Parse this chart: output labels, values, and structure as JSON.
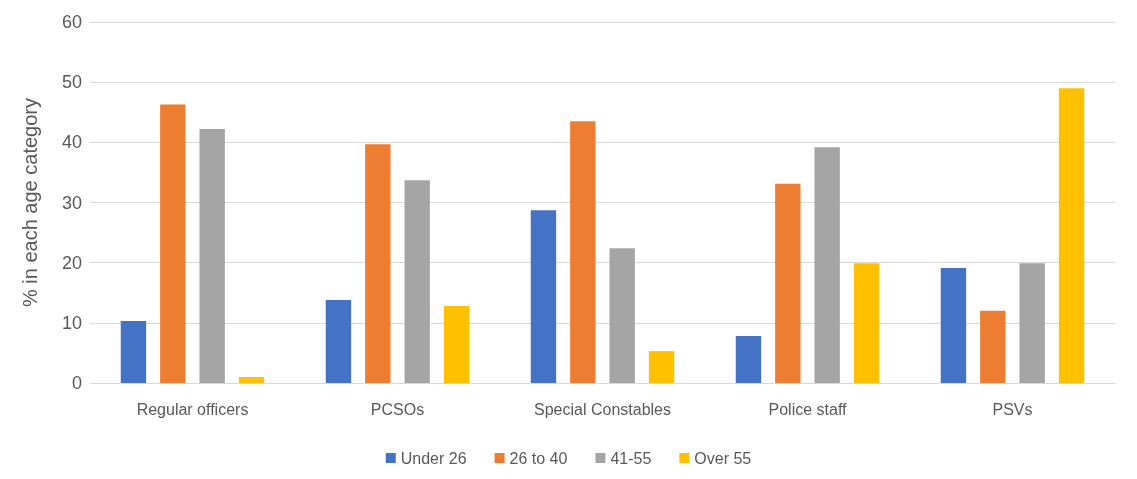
{
  "chart_data": {
    "type": "bar",
    "ylabel": "% in each age category",
    "categories": [
      "Regular officers",
      "PCSOs",
      "Special Constables",
      "Police staff",
      "PSVs"
    ],
    "series": [
      {
        "name": "Under 26",
        "color": "#4472c4",
        "values": [
          10.3,
          13.8,
          28.7,
          7.8,
          19.1
        ]
      },
      {
        "name": "26 to 40",
        "color": "#ed7d31",
        "values": [
          46.3,
          39.7,
          43.5,
          33.1,
          12.0
        ]
      },
      {
        "name": "41-55",
        "color": "#a5a5a5",
        "values": [
          42.2,
          33.7,
          22.4,
          39.2,
          19.9
        ]
      },
      {
        "name": "Over 55",
        "color": "#ffc000",
        "values": [
          1.0,
          12.8,
          5.3,
          19.9,
          49.0
        ]
      }
    ],
    "ylim": [
      0,
      60
    ],
    "yticks": [
      0,
      10,
      20,
      30,
      40,
      50,
      60
    ],
    "grid": "y",
    "legend": "bottom"
  }
}
